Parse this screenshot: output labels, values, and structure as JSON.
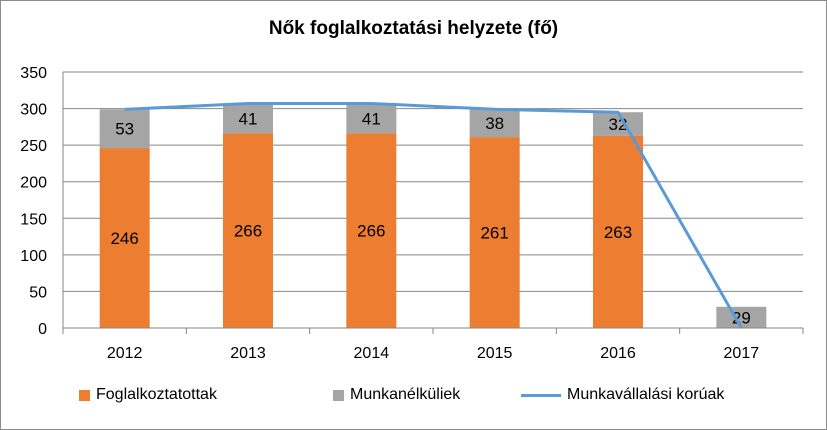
{
  "chart_data": {
    "type": "bar",
    "stacked": true,
    "title": "Nők foglalkoztatási helyzete (fő)",
    "categories": [
      "2012",
      "2013",
      "2014",
      "2015",
      "2016",
      "2017"
    ],
    "series": [
      {
        "name": "Foglalkoztatottak",
        "kind": "bar",
        "color": "#ed7d31",
        "values": [
          246,
          266,
          266,
          261,
          263,
          0
        ]
      },
      {
        "name": "Munkanélküliek",
        "kind": "bar",
        "color": "#a5a5a5",
        "values": [
          53,
          41,
          41,
          38,
          32,
          29
        ]
      },
      {
        "name": "Munkavállalási korúak",
        "kind": "line",
        "color": "#5b9bd5",
        "values": [
          299,
          307,
          307,
          299,
          295,
          0
        ]
      }
    ],
    "ylim": [
      0,
      350
    ],
    "yticks": [
      "0",
      "50",
      "100",
      "150",
      "200",
      "250",
      "300",
      "350"
    ],
    "grid": true,
    "legend_position": "bottom"
  }
}
